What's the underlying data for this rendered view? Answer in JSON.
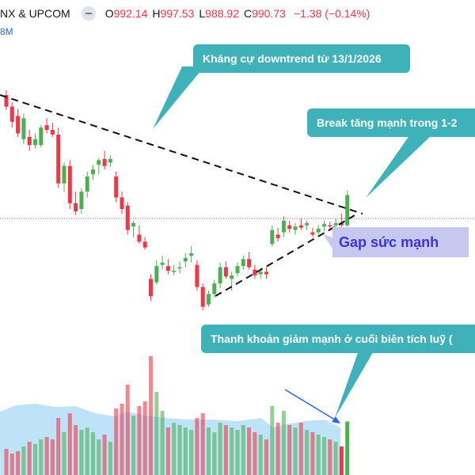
{
  "header": {
    "symbol": "NX & UPCOM",
    "open_label": "O",
    "open": "992.14",
    "high_label": "H",
    "high": "997.53",
    "low_label": "L",
    "low": "988.92",
    "close_label": "C",
    "close": "990.73",
    "change": "−1.38 (−0.14%)",
    "volume_fragment": "8M"
  },
  "colors": {
    "up": "#4caf50",
    "down": "#f23645",
    "accent": "#3fb2b9",
    "volume_area": "#a8d8f5",
    "gap_fill": "#c7c7f0",
    "gap_text": "#3b34d6",
    "ref_line": "#ef5350"
  },
  "annotations": {
    "resistance": "Kháng cự downtrend từ 13/1/2026",
    "breakout": "Break tăng mạnh trong 1-2",
    "gap": "Gap sức mạnh",
    "liquidity": "Thanh khoản giảm mạnh ở cuối biên tích luỹ ("
  },
  "chart_data": {
    "type": "candlestick",
    "price_axis_visible": false,
    "candles": [
      {
        "o": 1088,
        "h": 1092,
        "l": 1075,
        "c": 1078,
        "d": "down"
      },
      {
        "o": 1078,
        "h": 1082,
        "l": 1060,
        "c": 1065,
        "d": "down"
      },
      {
        "o": 1070,
        "h": 1076,
        "l": 1052,
        "c": 1055,
        "d": "down"
      },
      {
        "o": 1050,
        "h": 1072,
        "l": 1046,
        "c": 1068,
        "d": "up"
      },
      {
        "o": 1052,
        "h": 1058,
        "l": 1040,
        "c": 1045,
        "d": "down"
      },
      {
        "o": 1045,
        "h": 1055,
        "l": 1042,
        "c": 1050,
        "d": "up"
      },
      {
        "o": 1045,
        "h": 1062,
        "l": 1043,
        "c": 1060,
        "d": "up"
      },
      {
        "o": 1062,
        "h": 1068,
        "l": 1055,
        "c": 1058,
        "d": "down"
      },
      {
        "o": 1058,
        "h": 1064,
        "l": 1052,
        "c": 1054,
        "d": "down"
      },
      {
        "o": 1054,
        "h": 1060,
        "l": 1008,
        "c": 1012,
        "d": "down"
      },
      {
        "o": 1012,
        "h": 1030,
        "l": 1005,
        "c": 1027,
        "d": "up"
      },
      {
        "o": 1027,
        "h": 1032,
        "l": 990,
        "c": 995,
        "d": "down"
      },
      {
        "o": 995,
        "h": 1005,
        "l": 985,
        "c": 988,
        "d": "down"
      },
      {
        "o": 990,
        "h": 1008,
        "l": 986,
        "c": 1005,
        "d": "up"
      },
      {
        "o": 1005,
        "h": 1022,
        "l": 1000,
        "c": 1018,
        "d": "up"
      },
      {
        "o": 1020,
        "h": 1028,
        "l": 1015,
        "c": 1024,
        "d": "up"
      },
      {
        "o": 1028,
        "h": 1034,
        "l": 1020,
        "c": 1032,
        "d": "up"
      },
      {
        "o": 1033,
        "h": 1040,
        "l": 1024,
        "c": 1027,
        "d": "down"
      },
      {
        "o": 1030,
        "h": 1036,
        "l": 1026,
        "c": 1033,
        "d": "up"
      },
      {
        "o": 1018,
        "h": 1022,
        "l": 996,
        "c": 1000,
        "d": "down"
      },
      {
        "o": 1000,
        "h": 1005,
        "l": 986,
        "c": 990,
        "d": "down"
      },
      {
        "o": 993,
        "h": 996,
        "l": 968,
        "c": 972,
        "d": "down"
      },
      {
        "o": 975,
        "h": 980,
        "l": 966,
        "c": 978,
        "d": "up"
      },
      {
        "o": 968,
        "h": 976,
        "l": 960,
        "c": 962,
        "d": "down"
      },
      {
        "o": 962,
        "h": 966,
        "l": 955,
        "c": 957,
        "d": "down"
      },
      {
        "o": 930,
        "h": 934,
        "l": 911,
        "c": 915,
        "d": "down"
      },
      {
        "o": 927,
        "h": 946,
        "l": 925,
        "c": 941,
        "d": "up"
      },
      {
        "o": 942,
        "h": 950,
        "l": 938,
        "c": 944,
        "d": "up"
      },
      {
        "o": 941,
        "h": 947,
        "l": 934,
        "c": 937,
        "d": "down"
      },
      {
        "o": 936,
        "h": 942,
        "l": 933,
        "c": 937,
        "d": "up"
      },
      {
        "o": 939,
        "h": 945,
        "l": 935,
        "c": 940,
        "d": "up"
      },
      {
        "o": 945,
        "h": 952,
        "l": 940,
        "c": 948,
        "d": "up"
      },
      {
        "o": 950,
        "h": 958,
        "l": 944,
        "c": 952,
        "d": "up"
      },
      {
        "o": 942,
        "h": 946,
        "l": 920,
        "c": 923,
        "d": "down"
      },
      {
        "o": 923,
        "h": 926,
        "l": 903,
        "c": 906,
        "d": "down"
      },
      {
        "o": 908,
        "h": 920,
        "l": 906,
        "c": 917,
        "d": "up"
      },
      {
        "o": 917,
        "h": 929,
        "l": 914,
        "c": 926,
        "d": "up"
      },
      {
        "o": 926,
        "h": 944,
        "l": 922,
        "c": 940,
        "d": "up"
      },
      {
        "o": 940,
        "h": 945,
        "l": 930,
        "c": 932,
        "d": "down"
      },
      {
        "o": 930,
        "h": 936,
        "l": 920,
        "c": 933,
        "d": "up"
      },
      {
        "o": 935,
        "h": 944,
        "l": 932,
        "c": 941,
        "d": "up"
      },
      {
        "o": 941,
        "h": 950,
        "l": 938,
        "c": 947,
        "d": "up"
      },
      {
        "o": 947,
        "h": 953,
        "l": 938,
        "c": 940,
        "d": "down"
      },
      {
        "o": 938,
        "h": 942,
        "l": 930,
        "c": 933,
        "d": "down"
      },
      {
        "o": 934,
        "h": 940,
        "l": 930,
        "c": 936,
        "d": "up"
      },
      {
        "o": 936,
        "h": 940,
        "l": 930,
        "c": 934,
        "d": "down"
      },
      {
        "o": 960,
        "h": 976,
        "l": 958,
        "c": 972,
        "d": "up"
      },
      {
        "o": 968,
        "h": 974,
        "l": 962,
        "c": 965,
        "d": "down"
      },
      {
        "o": 970,
        "h": 984,
        "l": 966,
        "c": 980,
        "d": "up"
      },
      {
        "o": 976,
        "h": 980,
        "l": 970,
        "c": 973,
        "d": "down"
      },
      {
        "o": 972,
        "h": 978,
        "l": 968,
        "c": 975,
        "d": "up"
      },
      {
        "o": 976,
        "h": 982,
        "l": 972,
        "c": 974,
        "d": "down"
      },
      {
        "o": 976,
        "h": 980,
        "l": 972,
        "c": 978,
        "d": "up"
      },
      {
        "o": 970,
        "h": 974,
        "l": 966,
        "c": 968,
        "d": "down"
      },
      {
        "o": 970,
        "h": 976,
        "l": 968,
        "c": 973,
        "d": "up"
      },
      {
        "o": 975,
        "h": 980,
        "l": 971,
        "c": 977,
        "d": "up"
      },
      {
        "o": 976,
        "h": 979,
        "l": 973,
        "c": 975,
        "d": "down"
      },
      {
        "o": 976,
        "h": 982,
        "l": 972,
        "c": 978,
        "d": "up"
      },
      {
        "o": 978,
        "h": 986,
        "l": 974,
        "c": 976,
        "d": "down"
      },
      {
        "o": 976,
        "h": 1006,
        "l": 975,
        "c": 1002,
        "d": "up"
      }
    ],
    "volume": [
      {
        "v": 22,
        "d": "down"
      },
      {
        "v": 18,
        "d": "down"
      },
      {
        "v": 20,
        "d": "down"
      },
      {
        "v": 24,
        "d": "up"
      },
      {
        "v": 28,
        "d": "down"
      },
      {
        "v": 26,
        "d": "up"
      },
      {
        "v": 30,
        "d": "up"
      },
      {
        "v": 32,
        "d": "down"
      },
      {
        "v": 30,
        "d": "down"
      },
      {
        "v": 48,
        "d": "down"
      },
      {
        "v": 36,
        "d": "up"
      },
      {
        "v": 52,
        "d": "down"
      },
      {
        "v": 42,
        "d": "down"
      },
      {
        "v": 38,
        "d": "up"
      },
      {
        "v": 40,
        "d": "up"
      },
      {
        "v": 36,
        "d": "up"
      },
      {
        "v": 30,
        "d": "up"
      },
      {
        "v": 34,
        "d": "down"
      },
      {
        "v": 28,
        "d": "up"
      },
      {
        "v": 56,
        "d": "down"
      },
      {
        "v": 60,
        "d": "down"
      },
      {
        "v": 76,
        "d": "down"
      },
      {
        "v": 50,
        "d": "up"
      },
      {
        "v": 58,
        "d": "down"
      },
      {
        "v": 62,
        "d": "down"
      },
      {
        "v": 100,
        "d": "down"
      },
      {
        "v": 70,
        "d": "up"
      },
      {
        "v": 54,
        "d": "up"
      },
      {
        "v": 40,
        "d": "down"
      },
      {
        "v": 44,
        "d": "up"
      },
      {
        "v": 42,
        "d": "up"
      },
      {
        "v": 40,
        "d": "up"
      },
      {
        "v": 38,
        "d": "up"
      },
      {
        "v": 48,
        "d": "down"
      },
      {
        "v": 52,
        "d": "down"
      },
      {
        "v": 40,
        "d": "up"
      },
      {
        "v": 36,
        "d": "up"
      },
      {
        "v": 44,
        "d": "up"
      },
      {
        "v": 42,
        "d": "down"
      },
      {
        "v": 40,
        "d": "up"
      },
      {
        "v": 38,
        "d": "up"
      },
      {
        "v": 42,
        "d": "up"
      },
      {
        "v": 40,
        "d": "down"
      },
      {
        "v": 36,
        "d": "down"
      },
      {
        "v": 34,
        "d": "up"
      },
      {
        "v": 30,
        "d": "down"
      },
      {
        "v": 58,
        "d": "up"
      },
      {
        "v": 44,
        "d": "down"
      },
      {
        "v": 54,
        "d": "up"
      },
      {
        "v": 42,
        "d": "down"
      },
      {
        "v": 40,
        "d": "up"
      },
      {
        "v": 44,
        "d": "down"
      },
      {
        "v": 38,
        "d": "up"
      },
      {
        "v": 36,
        "d": "down"
      },
      {
        "v": 34,
        "d": "up"
      },
      {
        "v": 32,
        "d": "up"
      },
      {
        "v": 30,
        "d": "down"
      },
      {
        "v": 28,
        "d": "up"
      },
      {
        "v": 24,
        "d": "down"
      },
      {
        "v": 45,
        "d": "up"
      }
    ]
  }
}
